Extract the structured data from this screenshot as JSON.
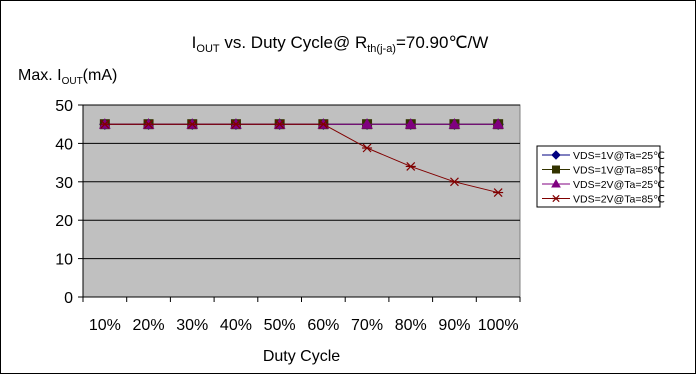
{
  "chart_data": {
    "type": "line",
    "title": {
      "parts": [
        {
          "text": "I",
          "sub": false
        },
        {
          "text": "OUT",
          "sub": true
        },
        {
          "text": " vs. Duty Cycle@ R",
          "sub": false
        },
        {
          "text": "th(j-a)",
          "sub": true
        },
        {
          "text": "=70.90℃/W",
          "sub": false
        }
      ]
    },
    "ylabel": {
      "parts": [
        {
          "text": "Max. I",
          "sub": false
        },
        {
          "text": "OUT",
          "sub": true
        },
        {
          "text": "(mA)",
          "sub": false
        }
      ]
    },
    "xlabel": "Duty Cycle",
    "categories": [
      "10%",
      "20%",
      "30%",
      "40%",
      "50%",
      "60%",
      "70%",
      "80%",
      "90%",
      "100%"
    ],
    "ylim": [
      0,
      50
    ],
    "yticks": [
      0,
      10,
      20,
      30,
      40,
      50
    ],
    "grid": "horizontal",
    "plot_background": "#c0c0c0",
    "legend_position": "right",
    "series": [
      {
        "name": "VDS=1V@Ta=25℃",
        "color": "#000080",
        "marker": "diamond",
        "values": [
          45,
          45,
          45,
          45,
          45,
          45,
          45,
          45,
          45,
          45
        ]
      },
      {
        "name": "VDS=1V@Ta=85℃",
        "color": "#333300",
        "marker": "square",
        "values": [
          45,
          45,
          45,
          45,
          45,
          45,
          45,
          45,
          45,
          45
        ]
      },
      {
        "name": "VDS=2V@Ta=25℃",
        "color": "#800080",
        "marker": "triangle",
        "values": [
          45,
          45,
          45,
          45,
          45,
          45,
          45,
          45,
          45,
          45
        ]
      },
      {
        "name": "VDS=2V@Ta=85℃",
        "color": "#800000",
        "marker": "asterisk",
        "values": [
          45,
          45,
          45,
          45,
          45,
          45,
          38.8,
          34,
          30,
          27.2
        ]
      }
    ]
  }
}
